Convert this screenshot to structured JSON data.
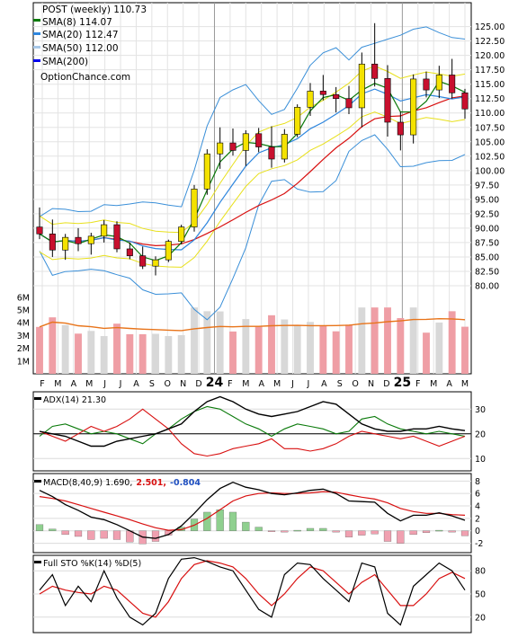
{
  "main": {
    "title": "POST (weekly) 110.73",
    "legend": [
      {
        "label": "SMA(8) 114.07",
        "color": "#0a7a0a"
      },
      {
        "label": "SMA(20) 112.47",
        "color": "#2e86de"
      },
      {
        "label": "SMA(50) 112.00",
        "color": "#a8c8e8"
      },
      {
        "label": "SMA(200)",
        "color": "#0000ee"
      }
    ],
    "watermark": "OptionChance.com",
    "y_ticks": [
      "125.00",
      "122.50",
      "120.00",
      "117.50",
      "115.00",
      "112.50",
      "110.00",
      "107.50",
      "105.00",
      "102.50",
      "100.00",
      "97.50",
      "95.00",
      "92.50",
      "90.00",
      "87.50",
      "85.00",
      "82.50",
      "80.00"
    ],
    "vol_ticks": [
      "6M",
      "5M",
      "4M",
      "3M",
      "2M",
      "1M"
    ],
    "x_labels": [
      "F",
      "M",
      "A",
      "M",
      "J",
      "J",
      "A",
      "S",
      "O",
      "N",
      "D",
      "24",
      "F",
      "M",
      "A",
      "M",
      "J",
      "J",
      "A",
      "S",
      "O",
      "N",
      "D",
      "25",
      "F",
      "M",
      "A",
      "M"
    ]
  },
  "adx": {
    "label": "ADX(14) 21.30",
    "ticks": [
      "30",
      "20",
      "10"
    ]
  },
  "macd": {
    "label": "MACD(8,40,9) 1.690,",
    "value2": "2.501,",
    "value3": "-0.804",
    "ticks": [
      "8",
      "6",
      "4",
      "2",
      "0",
      "-2"
    ]
  },
  "sto": {
    "label": "Full STO %K(14) %D(5)",
    "ticks": [
      "80",
      "50",
      "20"
    ]
  },
  "colors": {
    "up": "#f4e200",
    "down": "#c8102e",
    "bb": "#3a8fd8",
    "env": "#e8e01a",
    "sma8": "#0a7a0a",
    "sma20": "#2e86de",
    "sma200": "#d81010",
    "volume": "#ef9ea5",
    "vol_avg": "#e8741a"
  },
  "chart_data": [
    {
      "type": "candlestick",
      "title": "POST (weekly) 110.73",
      "ylim": [
        77.5,
        126.5
      ],
      "series": [
        {
          "name": "POST (weekly)",
          "values": [
            [
              90.2,
              93.6,
              88.1,
              89.0
            ],
            [
              89.0,
              91.5,
              85.0,
              86.2
            ],
            [
              86.2,
              89.0,
              84.5,
              88.4
            ],
            [
              88.4,
              90.0,
              86.0,
              87.3
            ],
            [
              87.3,
              89.2,
              85.4,
              88.6
            ],
            [
              88.6,
              91.4,
              87.5,
              90.6
            ],
            [
              90.6,
              91.2,
              85.8,
              86.4
            ],
            [
              86.4,
              87.5,
              84.6,
              85.2
            ],
            [
              85.2,
              86.8,
              82.9,
              83.4
            ],
            [
              83.4,
              85.1,
              81.8,
              84.5
            ],
            [
              84.5,
              88.0,
              84.1,
              87.7
            ],
            [
              87.7,
              90.6,
              87.2,
              90.2
            ],
            [
              90.2,
              97.5,
              89.4,
              96.8
            ],
            [
              96.8,
              103.7,
              95.8,
              102.9
            ],
            [
              102.9,
              107.5,
              100.3,
              104.8
            ],
            [
              104.8,
              107.3,
              102.6,
              103.5
            ],
            [
              103.5,
              107.0,
              100.8,
              106.4
            ],
            [
              106.4,
              107.4,
              103.2,
              104.1
            ],
            [
              104.1,
              107.7,
              100.5,
              102.0
            ],
            [
              102.0,
              107.2,
              101.4,
              106.3
            ],
            [
              106.3,
              111.5,
              105.8,
              111.0
            ],
            [
              111.0,
              115.2,
              109.5,
              113.8
            ],
            [
              113.8,
              116.6,
              112.2,
              113.2
            ],
            [
              113.2,
              114.5,
              110.1,
              112.5
            ],
            [
              112.5,
              114.7,
              109.8,
              110.9
            ],
            [
              110.9,
              120.5,
              107.5,
              118.5
            ],
            [
              118.5,
              125.6,
              114.6,
              116.0
            ],
            [
              116.0,
              118.3,
              105.9,
              108.4
            ],
            [
              108.4,
              110.2,
              103.5,
              106.2
            ],
            [
              106.2,
              116.7,
              104.7,
              115.9
            ],
            [
              115.9,
              117.2,
              112.7,
              114.0
            ],
            [
              114.0,
              118.2,
              112.6,
              116.6
            ],
            [
              116.6,
              119.4,
              112.5,
              113.5
            ],
            [
              113.5,
              114.2,
              109.0,
              110.7
            ]
          ]
        }
      ]
    },
    {
      "type": "line",
      "title": "ADX(14) 21.30",
      "ylim": [
        5,
        37
      ],
      "series": [
        {
          "name": "ADX(14) 21.30",
          "values": [
            21,
            20,
            19,
            17,
            15,
            15,
            17,
            18,
            19,
            20,
            22,
            24,
            29,
            33,
            35,
            33,
            30,
            28,
            27,
            28,
            29,
            31,
            33,
            32,
            28,
            24,
            22,
            21,
            21,
            22,
            22,
            23,
            22,
            21.3
          ]
        },
        {
          "name": "",
          "values": [
            19,
            23,
            24,
            22,
            20,
            21,
            20,
            18,
            16,
            20,
            22,
            26,
            29,
            31,
            30,
            27,
            24,
            22,
            19,
            22,
            24,
            23,
            22,
            20,
            21,
            26,
            27,
            24,
            22,
            21,
            20,
            21,
            20,
            19
          ]
        },
        {
          "name": "",
          "values": [
            21,
            19,
            17,
            20,
            23,
            21,
            23,
            26,
            30,
            26,
            22,
            16,
            12,
            11,
            12,
            14,
            15,
            16,
            18,
            14,
            14,
            13,
            14,
            16,
            19,
            21,
            20,
            19,
            18,
            19,
            17,
            15,
            17,
            19
          ]
        }
      ]
    },
    {
      "type": "bar",
      "title": "MACD(8,40,9) 1.690,",
      "ylim": [
        -3.5,
        9.2
      ],
      "series": [
        {
          "name": "",
          "values": [
            6.5,
            5.5,
            4.2,
            3.3,
            2.2,
            1.8,
            1.0,
            0.0,
            -1.0,
            -1.2,
            -0.6,
            0.8,
            2.8,
            5.0,
            6.8,
            7.8,
            7.0,
            6.6,
            6.0,
            5.8,
            6.1,
            6.5,
            6.7,
            6.0,
            4.8,
            4.7,
            4.6,
            2.8,
            1.6,
            2.5,
            2.5,
            2.9,
            2.4,
            1.69
          ]
        },
        {
          "name": "",
          "values": [
            5.5,
            5.2,
            4.8,
            4.2,
            3.6,
            3.0,
            2.4,
            1.8,
            1.1,
            0.5,
            0.1,
            0.2,
            0.9,
            2.0,
            3.4,
            4.8,
            5.6,
            6.0,
            6.1,
            6.0,
            6.0,
            6.1,
            6.3,
            6.2,
            5.8,
            5.4,
            5.1,
            4.5,
            3.6,
            3.1,
            2.8,
            2.8,
            2.6,
            2.5
          ]
        },
        {
          "name": "",
          "values": [
            1.0,
            0.3,
            -0.6,
            -0.9,
            -1.4,
            -1.2,
            -1.4,
            -1.8,
            -2.1,
            -1.7,
            -0.7,
            0.6,
            1.9,
            3.0,
            3.4,
            3.0,
            1.4,
            0.6,
            -0.1,
            -0.2,
            0.1,
            0.4,
            0.4,
            -0.2,
            -1.0,
            -0.7,
            -0.5,
            -1.7,
            -2.0,
            -0.6,
            -0.3,
            0.1,
            -0.2,
            -0.8
          ]
        }
      ]
    },
    {
      "type": "line",
      "title": "Full STO %K(14) %D(5)",
      "ylim": [
        0,
        100
      ],
      "series": [
        {
          "name": "",
          "values": [
            55,
            75,
            35,
            60,
            40,
            80,
            45,
            20,
            10,
            25,
            70,
            95,
            97,
            92,
            85,
            80,
            55,
            30,
            20,
            75,
            90,
            88,
            70,
            55,
            40,
            90,
            85,
            25,
            10,
            60,
            75,
            90,
            80,
            55
          ]
        },
        {
          "name": "",
          "values": [
            50,
            60,
            55,
            52,
            50,
            60,
            55,
            40,
            25,
            20,
            40,
            70,
            88,
            93,
            90,
            85,
            70,
            50,
            35,
            50,
            70,
            85,
            80,
            65,
            50,
            65,
            75,
            55,
            35,
            35,
            50,
            70,
            78,
            70
          ]
        }
      ]
    }
  ]
}
